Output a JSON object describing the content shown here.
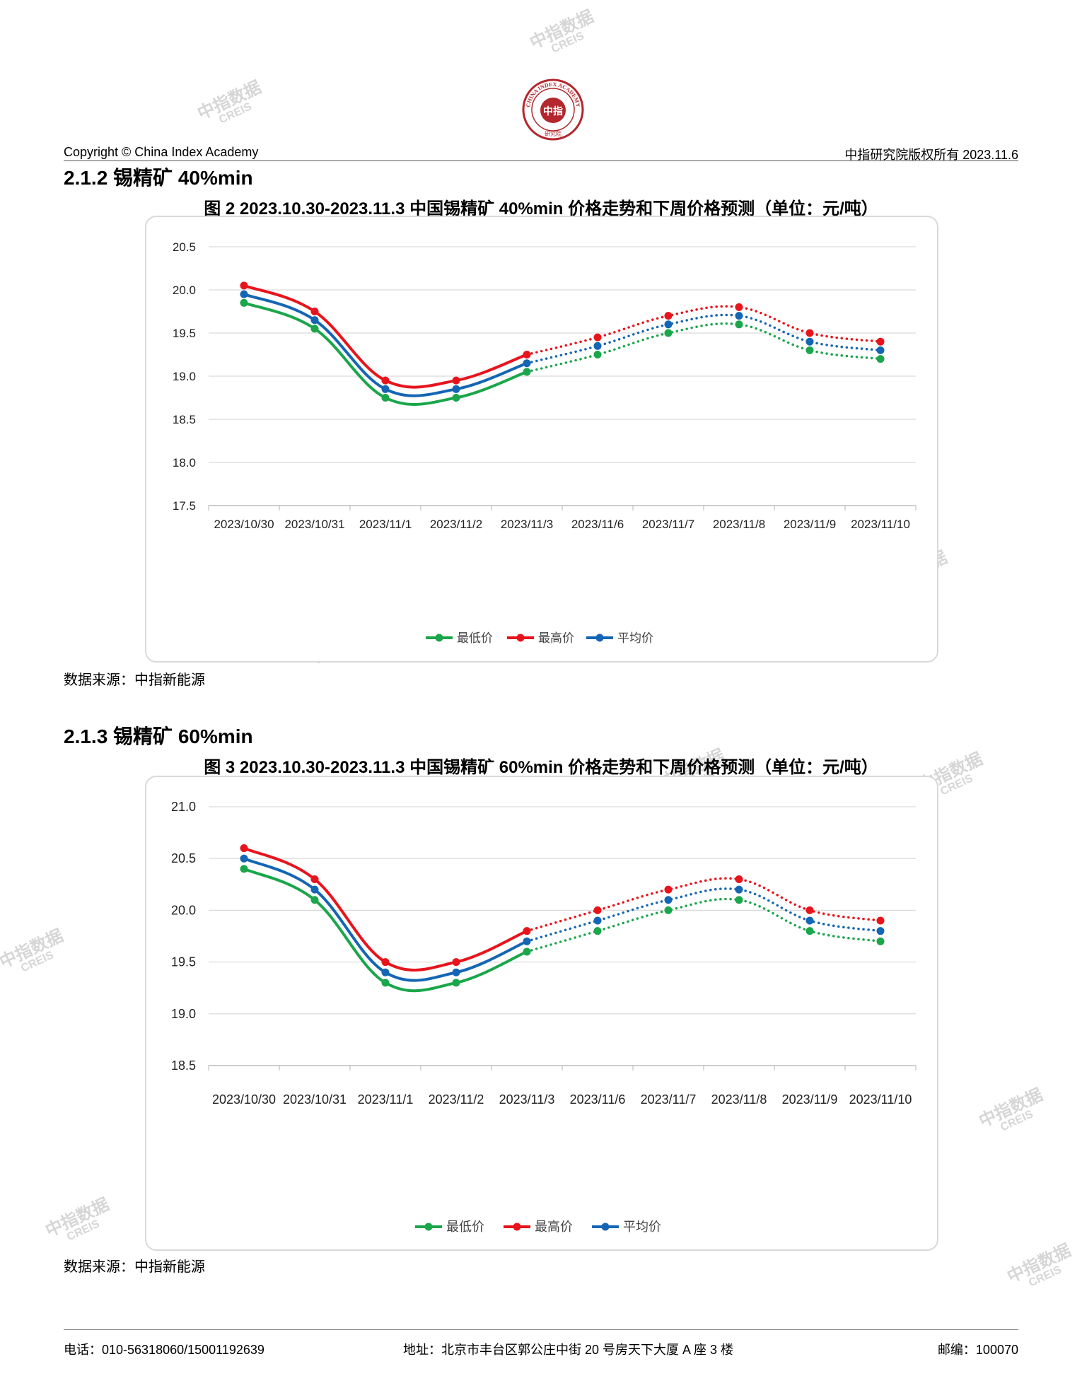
{
  "header": {
    "copyright": "Copyright © China Index Academy",
    "rights": "中指研究院版权所有 2023.11.6",
    "logo_ring_text": "CHINA INDEX ACADEMY",
    "logo_center_text": "中指",
    "logo_bottom_text": "研究院"
  },
  "watermark": {
    "cn": "中指数据",
    "en": "CREIS"
  },
  "section1": {
    "title": "2.1.2 锡精矿 40%min",
    "caption": "图 2 2023.10.30-2023.11.3 中国锡精矿 40%min 价格走势和下周价格预测（单位：元/吨）",
    "source": "数据来源：中指新能源"
  },
  "section2": {
    "title": "2.1.3 锡精矿 60%min",
    "caption": "图 3 2023.10.30-2023.11.3 中国锡精矿 60%min 价格走势和下周价格预测（单位：元/吨）",
    "source": "数据来源：中指新能源"
  },
  "chart_data": [
    {
      "type": "line",
      "categories": [
        "2023/10/30",
        "2023/10/31",
        "2023/11/1",
        "2023/11/2",
        "2023/11/3",
        "2023/11/6",
        "2023/11/7",
        "2023/11/8",
        "2023/11/9",
        "2023/11/10"
      ],
      "actual_until_index": 4,
      "ylim": [
        17.5,
        20.5
      ],
      "yticks": [
        17.5,
        18.0,
        18.5,
        19.0,
        19.5,
        20.0,
        20.5
      ],
      "grid": true,
      "legend_position": "bottom",
      "series": [
        {
          "name": "最低价",
          "color": "#1aa64a",
          "values": [
            19.85,
            19.55,
            18.75,
            18.75,
            19.05,
            19.25,
            19.5,
            19.6,
            19.3,
            19.2
          ]
        },
        {
          "name": "最高价",
          "color": "#e8141c",
          "values": [
            20.05,
            19.75,
            18.95,
            18.95,
            19.25,
            19.45,
            19.7,
            19.8,
            19.5,
            19.4
          ]
        },
        {
          "name": "平均价",
          "color": "#1466b4",
          "values": [
            19.95,
            19.65,
            18.85,
            18.85,
            19.15,
            19.35,
            19.6,
            19.7,
            19.4,
            19.3
          ]
        }
      ]
    },
    {
      "type": "line",
      "categories": [
        "2023/10/30",
        "2023/10/31",
        "2023/11/1",
        "2023/11/2",
        "2023/11/3",
        "2023/11/6",
        "2023/11/7",
        "2023/11/8",
        "2023/11/9",
        "2023/11/10"
      ],
      "actual_until_index": 4,
      "ylim": [
        18.5,
        21.0
      ],
      "yticks": [
        18.5,
        19.0,
        19.5,
        20.0,
        20.5,
        21.0
      ],
      "grid": true,
      "legend_position": "bottom",
      "series": [
        {
          "name": "最低价",
          "color": "#1aa64a",
          "values": [
            20.4,
            20.1,
            19.3,
            19.3,
            19.6,
            19.8,
            20.0,
            20.1,
            19.8,
            19.7
          ]
        },
        {
          "name": "最高价",
          "color": "#e8141c",
          "values": [
            20.6,
            20.3,
            19.5,
            19.5,
            19.8,
            20.0,
            20.2,
            20.3,
            20.0,
            19.9
          ]
        },
        {
          "name": "平均价",
          "color": "#1466b4",
          "values": [
            20.5,
            20.2,
            19.4,
            19.4,
            19.7,
            19.9,
            20.1,
            20.2,
            19.9,
            19.8
          ]
        }
      ]
    }
  ],
  "footer": {
    "phone": "电话：010-56318060/15001192639",
    "address": "地址：北京市丰台区郭公庄中街 20 号房天下大厦 A 座 3 楼",
    "postcode": "邮编：100070"
  }
}
